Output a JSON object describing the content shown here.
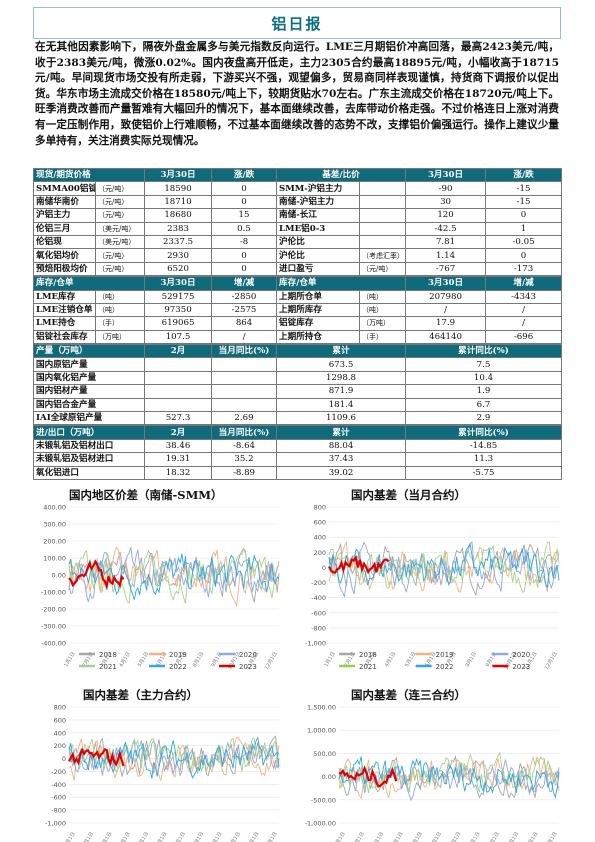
{
  "report": {
    "title": "铝日报",
    "summary": "在无其他因素影响下，隔夜外盘金属多与美元指数反向运行。LME三月期铝价冲高回落，最高2423美元/吨，收于2383美元/吨，微涨0.02%。国内夜盘高开低走，主力2305合约最高18895元/吨，小幅收高于18715元/吨。早间现货市场交投有所走弱，下游买兴不强，观望偏多，贸易商同样表现谨慎，持货商下调报价以促出货。华东市场主流成交价格在18580元/吨上下，较期货贴水70左右。广东主流成交价格在18720元/吨上下。旺季消费改善而产量暂难有大幅回升的情况下，基本面继续改善，去库带动价格走强。不过价格连日上涨对消费有一定压制作用，致使铝价上行难顺畅，不过基本面继续改善的态势不改，支撑铝价偏强运行。操作上建议少量多单持有，关注消费实际兑现情况。"
  },
  "table1": {
    "headers": [
      "现货/期货价格",
      "3月30日",
      "涨/跌",
      "基差/比价",
      "3月30日",
      "涨/跌"
    ],
    "rows": [
      [
        "SMMA00铝锭价",
        "（元/吨）",
        "18590",
        "0",
        "SMM-沪铝主力",
        "",
        "-90",
        "-15"
      ],
      [
        "南储华南价",
        "（元/吨）",
        "18710",
        "0",
        "南储-沪铝主力",
        "",
        "30",
        "-15"
      ],
      [
        "沪铝主力",
        "（元/吨）",
        "18680",
        "15",
        "南储-长江",
        "",
        "120",
        "0"
      ],
      [
        "伦铝三月",
        "（美元/吨）",
        "2383",
        "0.5",
        "LME铝0-3",
        "",
        "-42.5",
        "1"
      ],
      [
        "伦铝现",
        "（美元/吨）",
        "2337.5",
        "-8",
        "沪伦比",
        "",
        "7.81",
        "-0.05"
      ],
      [
        "氧化铝均价",
        "（元/吨）",
        "2930",
        "0",
        "沪伦比",
        "（考虑汇率）",
        "1.14",
        "0"
      ],
      [
        "预焙阳极均价",
        "（元/吨）",
        "6520",
        "0",
        "进口盈亏",
        "（元/吨）",
        "-767",
        "-173"
      ]
    ]
  },
  "table2": {
    "headers": [
      "库存/仓单",
      "3月30日",
      "增/减",
      "库存/仓单",
      "3月30日",
      "增/减"
    ],
    "rows": [
      [
        "LME库存",
        "（吨）",
        "529175",
        "-2850",
        "上期所仓单",
        "（吨）",
        "207980",
        "-4343"
      ],
      [
        "LME注销仓单",
        "（吨）",
        "97350",
        "-2575",
        "上期所库存",
        "（吨）",
        "/",
        "/"
      ],
      [
        "LME持仓",
        "（手）",
        "619065",
        "864",
        "铝锭库存",
        "（万吨）",
        "17.9",
        "/"
      ],
      [
        "铝锭社会库存",
        "（万吨）",
        "107.5",
        "/",
        "上期所持仓",
        "（手）",
        "464140",
        "-696"
      ]
    ]
  },
  "table3": {
    "headers": [
      "产量（万吨）",
      "2月",
      "当月同比(%)",
      "累计",
      "累计同比(%)"
    ],
    "rows": [
      [
        "国内原铝产量",
        "",
        "",
        "673.5",
        "7.5"
      ],
      [
        "国内氧化铝产量",
        "",
        "",
        "1298.8",
        "10.4"
      ],
      [
        "国内铝材产量",
        "",
        "",
        "871.9",
        "1.9"
      ],
      [
        "国内铝合金产量",
        "",
        "",
        "181.4",
        "6.7"
      ],
      [
        "IAI全球原铝产量",
        "527.3",
        "2.69",
        "1109.6",
        "2.9"
      ]
    ]
  },
  "table4": {
    "headers": [
      "进/出口（万吨）",
      "2月",
      "当月同比(%)",
      "累计",
      "累计同比(%)"
    ],
    "rows": [
      [
        "未锻轧铝及铝材出口",
        "38.46",
        "-8.64",
        "88.04",
        "-14.85"
      ],
      [
        "未锻轧铝及铝材进口",
        "19.31",
        "35.2",
        "37.43",
        "11.3"
      ],
      [
        "氧化铝进口",
        "18.32",
        "-8.89",
        "39.02",
        "-5.75"
      ]
    ]
  },
  "chart_data": [
    {
      "type": "line",
      "title": "国内地区价差（南储-SMM）",
      "ylim": [
        -400,
        400
      ],
      "yticks": [
        "400.00",
        "300.00",
        "200.00",
        "100.00",
        "0.00",
        "-100.00",
        "-200.00",
        "-300.00",
        "-400.00"
      ],
      "legend_position": "bottom",
      "series": [
        {
          "name": "2018",
          "color": "#a6a6a6"
        },
        {
          "name": "2019",
          "color": "#f4b183"
        },
        {
          "name": "2020",
          "color": "#8faadc"
        },
        {
          "name": "2021",
          "color": "#a9d18e"
        },
        {
          "name": "2022",
          "color": "#2ea8e0"
        },
        {
          "name": "2023",
          "color": "#e00000"
        }
      ]
    },
    {
      "type": "line",
      "title": "国内基差（当月合约）",
      "ylim": [
        -1000,
        800
      ],
      "yticks": [
        "800",
        "600",
        "400",
        "200",
        "0",
        "-200",
        "-400",
        "-600",
        "-800",
        "-1,000"
      ],
      "legend_position": "bottom",
      "series": [
        {
          "name": "2018",
          "color": "#a6a6a6"
        },
        {
          "name": "2019",
          "color": "#f4b183"
        },
        {
          "name": "2020",
          "color": "#8faadc"
        },
        {
          "name": "2021",
          "color": "#92d050"
        },
        {
          "name": "2022",
          "color": "#2ea8e0"
        },
        {
          "name": "2023",
          "color": "#e00000"
        }
      ]
    },
    {
      "type": "line",
      "title": "国内基差（主力合约）",
      "ylim": [
        -1000,
        800
      ],
      "yticks": [
        "800",
        "600",
        "400",
        "200",
        "0",
        "-200",
        "-400",
        "-600",
        "-800",
        "-1,000"
      ]
    },
    {
      "type": "line",
      "title": "国内基差（连三合约）",
      "ylim": [
        -1000,
        1500
      ],
      "yticks": [
        "1,500.00",
        "1,000.00",
        "500.00",
        "0.00",
        "-500.00",
        "-1,000.00"
      ]
    }
  ]
}
